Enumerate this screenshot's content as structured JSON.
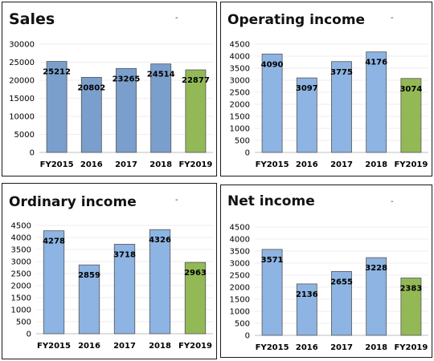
{
  "chart_data": [
    {
      "type": "bar",
      "title": "Sales",
      "categories": [
        "FY2015",
        "2016",
        "2017",
        "2018",
        "FY2019"
      ],
      "values": [
        25212,
        20802,
        23265,
        24514,
        22877
      ],
      "ylim": [
        0,
        30000
      ],
      "yticks": [
        0,
        5000,
        10000,
        15000,
        20000,
        25000,
        30000
      ],
      "bar_color": "#7a9fcd",
      "highlight_color": "#93b957",
      "grid": true,
      "dash": "-"
    },
    {
      "type": "bar",
      "title": "Operating income",
      "categories": [
        "FY2015",
        "2016",
        "2017",
        "2018",
        "FY2019"
      ],
      "values": [
        4090,
        3097,
        3775,
        4176,
        3074
      ],
      "ylim": [
        0,
        4500
      ],
      "yticks": [
        0,
        500,
        1000,
        1500,
        2000,
        2500,
        3000,
        3500,
        4000,
        4500
      ],
      "bar_color": "#8db4e2",
      "highlight_color": "#93b957",
      "grid": true,
      "dash": "-"
    },
    {
      "type": "bar",
      "title": "Ordinary income",
      "categories": [
        "FY2015",
        "2016",
        "2017",
        "2018",
        "FY2019"
      ],
      "values": [
        4278,
        2859,
        3718,
        4326,
        2963
      ],
      "ylim": [
        0,
        4500
      ],
      "yticks": [
        0,
        500,
        1000,
        1500,
        2000,
        2500,
        3000,
        3500,
        4000,
        4500
      ],
      "bar_color": "#8db4e2",
      "highlight_color": "#93b957",
      "grid": true,
      "dash": "-"
    },
    {
      "type": "bar",
      "title": "Net income",
      "categories": [
        "FY2015",
        "2016",
        "2017",
        "2018",
        "FY2019"
      ],
      "values": [
        3571,
        2136,
        2655,
        3228,
        2383
      ],
      "ylim": [
        0,
        4500
      ],
      "yticks": [
        0,
        500,
        1000,
        1500,
        2000,
        2500,
        3000,
        3500,
        4000,
        4500
      ],
      "bar_color": "#8db4e2",
      "highlight_color": "#93b957",
      "grid": true,
      "dash": "-"
    }
  ]
}
